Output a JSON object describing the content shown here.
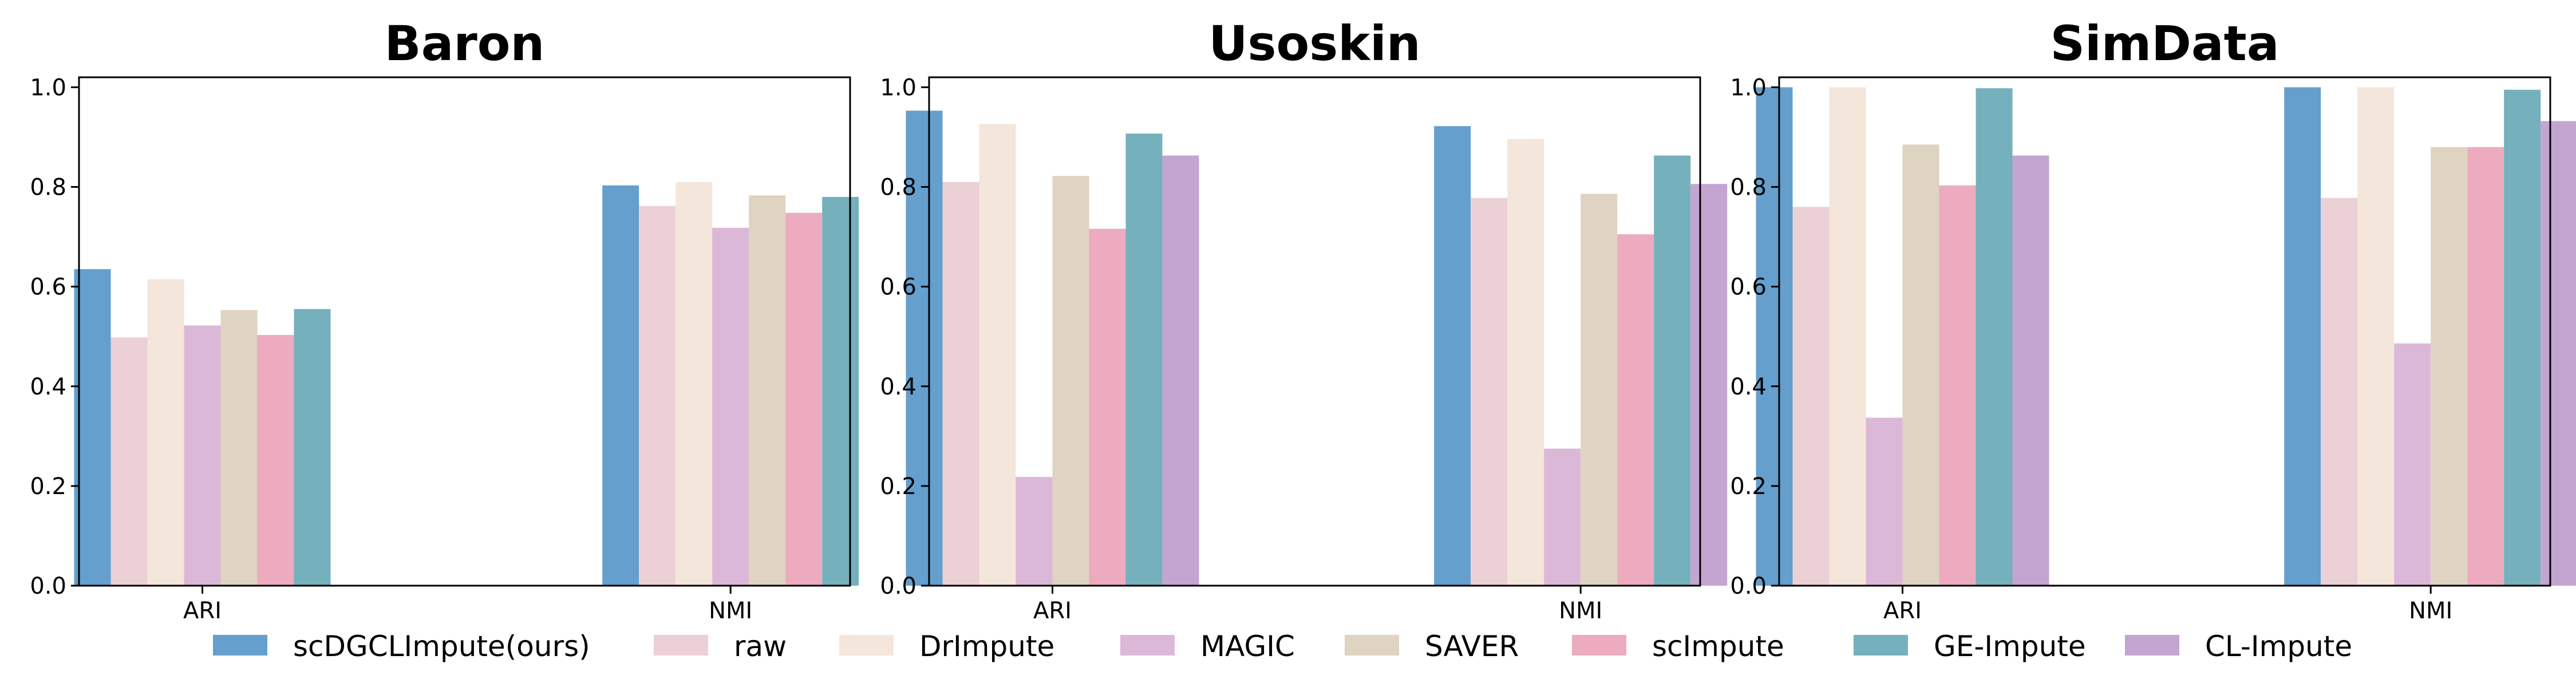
{
  "chart_data": [
    {
      "type": "bar",
      "title": "Baron",
      "categories": [
        "ARI",
        "NMI"
      ],
      "ylim": [
        0,
        1.02
      ],
      "yticks": [
        "0.0",
        "0.2",
        "0.4",
        "0.6",
        "0.8",
        "1.0"
      ],
      "grid": false,
      "series": [
        {
          "name": "scDGCLImpute(ours)",
          "values": [
            0.635,
            0.803
          ]
        },
        {
          "name": "raw",
          "values": [
            0.498,
            0.762
          ]
        },
        {
          "name": "DrImpute",
          "values": [
            0.615,
            0.81
          ]
        },
        {
          "name": "MAGIC",
          "values": [
            0.522,
            0.718
          ]
        },
        {
          "name": "SAVER",
          "values": [
            0.553,
            0.783
          ]
        },
        {
          "name": "scImpute",
          "values": [
            0.503,
            0.748
          ]
        },
        {
          "name": "GE-Impute",
          "values": [
            0.555,
            0.78
          ]
        }
      ]
    },
    {
      "type": "bar",
      "title": "Usoskin",
      "categories": [
        "ARI",
        "NMI"
      ],
      "ylim": [
        0,
        1.02
      ],
      "yticks": [
        "0.0",
        "0.2",
        "0.4",
        "0.6",
        "0.8",
        "1.0"
      ],
      "grid": false,
      "series": [
        {
          "name": "scDGCLImpute(ours)",
          "values": [
            0.953,
            0.922
          ]
        },
        {
          "name": "raw",
          "values": [
            0.81,
            0.778
          ]
        },
        {
          "name": "DrImpute",
          "values": [
            0.926,
            0.896
          ]
        },
        {
          "name": "MAGIC",
          "values": [
            0.218,
            0.275
          ]
        },
        {
          "name": "SAVER",
          "values": [
            0.822,
            0.786
          ]
        },
        {
          "name": "scImpute",
          "values": [
            0.716,
            0.705
          ]
        },
        {
          "name": "GE-Impute",
          "values": [
            0.907,
            0.863
          ]
        },
        {
          "name": "CL-Impute",
          "values": [
            0.863,
            0.806
          ]
        }
      ]
    },
    {
      "type": "bar",
      "title": "SimData",
      "categories": [
        "ARI",
        "NMI"
      ],
      "ylim": [
        0,
        1.02
      ],
      "yticks": [
        "0.0",
        "0.2",
        "0.4",
        "0.6",
        "0.8",
        "1.0"
      ],
      "grid": false,
      "series": [
        {
          "name": "scDGCLImpute(ours)",
          "values": [
            1.0,
            1.0
          ]
        },
        {
          "name": "raw",
          "values": [
            0.76,
            0.778
          ]
        },
        {
          "name": "DrImpute",
          "values": [
            1.0,
            1.0
          ]
        },
        {
          "name": "MAGIC",
          "values": [
            0.337,
            0.486
          ]
        },
        {
          "name": "SAVER",
          "values": [
            0.885,
            0.88
          ]
        },
        {
          "name": "scImpute",
          "values": [
            0.803,
            0.88
          ]
        },
        {
          "name": "GE-Impute",
          "values": [
            0.998,
            0.995
          ]
        },
        {
          "name": "CL-Impute",
          "values": [
            0.863,
            0.932
          ]
        }
      ]
    }
  ],
  "legend": {
    "placement": "bottom-center",
    "items": [
      {
        "label": "scDGCLImpute(ours)",
        "color": "#649fcd"
      },
      {
        "label": "raw",
        "color": "#ebd0d6"
      },
      {
        "label": "DrImpute",
        "color": "#f4e6da"
      },
      {
        "label": "MAGIC",
        "color": "#dbb8d7"
      },
      {
        "label": "SAVER",
        "color": "#dfd3c1"
      },
      {
        "label": "scImpute",
        "color": "#ecabbf"
      },
      {
        "label": "GE-Impute",
        "color": "#75b0bd"
      },
      {
        "label": "CL-Impute",
        "color": "#c4a4d0"
      }
    ]
  }
}
